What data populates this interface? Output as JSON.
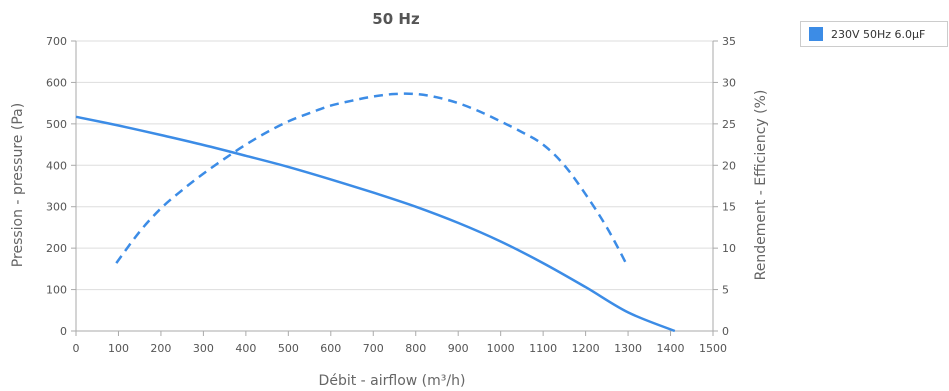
{
  "chart_data": {
    "type": "line",
    "title": "50 Hz",
    "xlabel": "Débit - airflow (m³/h)",
    "ylabel_left": "Pression - pressure (Pa)",
    "ylabel_right": "Rendement - Efficiency (%)",
    "xlim": [
      0,
      1500
    ],
    "ylim_left": [
      0,
      700
    ],
    "ylim_right": [
      0,
      35
    ],
    "x_ticks": [
      "0",
      "100",
      "200",
      "300",
      "400",
      "500",
      "600",
      "700",
      "800",
      "900",
      "1000",
      "1100",
      "1200",
      "1300",
      "1400",
      "1500"
    ],
    "y_left_ticks": [
      "0",
      "100",
      "200",
      "300",
      "400",
      "500",
      "600",
      "700"
    ],
    "y_right_ticks": [
      "0",
      "5",
      "10",
      "15",
      "20",
      "25",
      "30",
      "35"
    ],
    "grid": true,
    "legend_position": "top-right",
    "series": [
      {
        "name": "230V 50Hz 6.0µF",
        "color": "#3c8ce6",
        "pressure": {
          "axis": "left",
          "style": "solid",
          "x": [
            0,
            100,
            200,
            300,
            400,
            500,
            600,
            700,
            800,
            900,
            1000,
            1100,
            1200,
            1300,
            1410
          ],
          "y": [
            517,
            496,
            473,
            449,
            423,
            396,
            366,
            334,
            300,
            261,
            216,
            164,
            106,
            45,
            0
          ]
        },
        "efficiency": {
          "axis": "right",
          "style": "dashed",
          "x": [
            95,
            150,
            200,
            250,
            300,
            350,
            400,
            450,
            500,
            550,
            600,
            650,
            700,
            750,
            800,
            850,
            900,
            950,
            1000,
            1050,
            1100,
            1150,
            1200,
            1250,
            1295
          ],
          "y": [
            8.2,
            12.0,
            14.8,
            17.0,
            19.0,
            20.8,
            22.5,
            24.0,
            25.3,
            26.3,
            27.2,
            27.8,
            28.3,
            28.6,
            28.6,
            28.2,
            27.5,
            26.5,
            25.3,
            24.0,
            22.5,
            20.0,
            16.5,
            12.5,
            8.2
          ]
        }
      }
    ]
  }
}
